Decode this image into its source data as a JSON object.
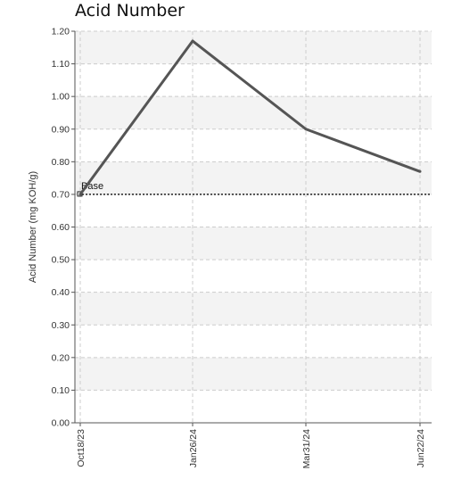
{
  "chart_data": {
    "type": "line",
    "title": "Acid Number",
    "ylabel": "Acid Number (mg KOH/g)",
    "xlabel": "",
    "categories": [
      "Oct18/23",
      "Jan26/24",
      "Mar31/24",
      "Jun22/24"
    ],
    "series": [
      {
        "values": [
          0.7,
          1.17,
          0.9,
          0.77
        ],
        "color": "#555555"
      }
    ],
    "reference_lines": [
      {
        "label": "Base",
        "value": 0.7,
        "style": "dotted",
        "color": "#222222"
      }
    ],
    "ylim": [
      0.0,
      1.2
    ],
    "yticks": [
      "0.00",
      "0.10",
      "0.20",
      "0.30",
      "0.40",
      "0.50",
      "0.60",
      "0.70",
      "0.80",
      "0.90",
      "1.00",
      "1.10",
      "1.20"
    ],
    "grid": true,
    "banded_background": true,
    "legend": "none"
  }
}
